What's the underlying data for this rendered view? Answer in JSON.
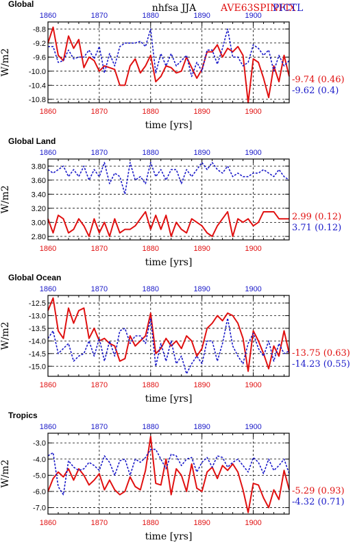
{
  "header": {
    "title": "nhfsa JJA",
    "legend_red": "AVE63SPINFIX",
    "legend_blue": "PICTL"
  },
  "colors": {
    "red": "#e01010",
    "blue": "#1818c8",
    "grid": "#000000"
  },
  "chart_data": [
    {
      "type": "line",
      "title": "Global",
      "xlabel": "time [yrs]",
      "ylabel": "W/m2",
      "xlim": [
        1860,
        1907
      ],
      "ylim": [
        -10.9,
        -8.6
      ],
      "yticks": [
        -10.8,
        -10.4,
        -10.0,
        -9.6,
        -9.2,
        -8.8
      ],
      "ytick_labels": [
        "-10.8",
        "-10.4",
        "-10.0",
        "-9.6",
        "-9.2",
        "-8.8"
      ],
      "xticks": [
        1860,
        1870,
        1880,
        1890,
        1900
      ],
      "xtick_labels": [
        "1860",
        "1870",
        "1880",
        "1890",
        "1900"
      ],
      "grid": true,
      "series": [
        {
          "name": "AVE63SPINFIX",
          "color": "#e01010",
          "x_start": 1860,
          "values": [
            -9.2,
            -8.75,
            -9.55,
            -9.7,
            -9.0,
            -9.35,
            -9.1,
            -9.9,
            -9.6,
            -9.7,
            -10.0,
            -9.85,
            -9.9,
            -9.95,
            -10.4,
            -10.4,
            -9.85,
            -9.65,
            -10.05,
            -9.85,
            -9.55,
            -10.3,
            -10.15,
            -9.85,
            -9.9,
            -10.05,
            -10.0,
            -9.6,
            -9.9,
            -10.2,
            -9.95,
            -9.45,
            -9.45,
            -9.25,
            -9.6,
            -9.35,
            -9.45,
            -9.3,
            -9.55,
            -10.9,
            -9.65,
            -9.75,
            -10.2,
            -10.75,
            -9.85,
            -10.3,
            -9.55,
            -10.15
          ]
        },
        {
          "name": "PICTL",
          "color": "#1818c8",
          "x_start": 1860,
          "values": [
            -9.3,
            -9.3,
            -9.75,
            -9.7,
            -9.4,
            -9.65,
            -9.6,
            -9.6,
            -9.4,
            -9.65,
            -9.3,
            -10.05,
            -9.5,
            -9.85,
            -9.3,
            -9.2,
            -9.2,
            -9.2,
            -9.15,
            -9.3,
            -8.8,
            -10.05,
            -9.5,
            -9.85,
            -9.5,
            -9.85,
            -9.7,
            -9.55,
            -10.15,
            -9.75,
            -10.0,
            -9.4,
            -9.4,
            -9.8,
            -9.35,
            -8.8,
            -9.6,
            -9.6,
            -9.85,
            -9.75,
            -9.25,
            -9.35,
            -9.55,
            -9.4,
            -10.0,
            -9.55,
            -9.85,
            -9.7
          ]
        }
      ],
      "stats": [
        {
          "text": "-9.74 (0.46)",
          "color": "#e01010"
        },
        {
          "text": "-9.62 (0.4)",
          "color": "#1818c8"
        }
      ]
    },
    {
      "type": "line",
      "title": "Global Land",
      "xlabel": "time [yrs]",
      "ylabel": "W/m2",
      "xlim": [
        1860,
        1907
      ],
      "ylim": [
        2.75,
        3.9
      ],
      "yticks": [
        2.8,
        3.0,
        3.2,
        3.4,
        3.6,
        3.8
      ],
      "ytick_labels": [
        "2.80",
        "3.00",
        "3.20",
        "3.40",
        "3.60",
        "3.80"
      ],
      "xticks": [
        1860,
        1870,
        1880,
        1890,
        1900
      ],
      "xtick_labels": [
        "1860",
        "1870",
        "1880",
        "1890",
        "1900"
      ],
      "grid": true,
      "series": [
        {
          "name": "AVE63SPINFIX",
          "color": "#e01010",
          "x_start": 1860,
          "values": [
            3.05,
            2.85,
            3.1,
            3.05,
            2.85,
            2.9,
            3.05,
            2.95,
            2.8,
            3.05,
            2.85,
            3.0,
            2.8,
            3.05,
            2.85,
            2.9,
            2.9,
            2.95,
            3.05,
            3.15,
            2.9,
            3.1,
            2.9,
            3.1,
            2.8,
            3.0,
            2.9,
            2.85,
            3.05,
            3.0,
            2.95,
            2.85,
            2.8,
            2.95,
            3.05,
            3.15,
            2.8,
            3.05,
            3.0,
            3.05,
            2.95,
            3.0,
            3.15,
            3.15,
            3.15,
            3.05,
            3.05,
            3.05
          ]
        },
        {
          "name": "PICTL",
          "color": "#1818c8",
          "x_start": 1860,
          "values": [
            3.75,
            3.7,
            3.75,
            3.8,
            3.65,
            3.75,
            3.65,
            3.8,
            3.6,
            3.75,
            3.65,
            3.85,
            3.55,
            3.7,
            3.65,
            3.4,
            3.85,
            3.6,
            3.65,
            3.55,
            3.85,
            3.65,
            3.75,
            3.6,
            3.75,
            3.75,
            3.55,
            3.75,
            3.65,
            3.75,
            3.85,
            3.75,
            3.85,
            3.75,
            3.7,
            3.8,
            3.65,
            3.7,
            3.65,
            3.65,
            3.7,
            3.7,
            3.75,
            3.7,
            3.65,
            3.75,
            3.65,
            3.6
          ]
        }
      ],
      "stats": [
        {
          "text": "2.99 (0.12)",
          "color": "#e01010"
        },
        {
          "text": "3.71 (0.12)",
          "color": "#1818c8"
        }
      ]
    },
    {
      "type": "line",
      "title": "Global Ocean",
      "xlabel": "time [yrs]",
      "ylabel": "W/m2",
      "xlim": [
        1860,
        1907
      ],
      "ylim": [
        -15.4,
        -12.2
      ],
      "yticks": [
        -15.0,
        -14.5,
        -14.0,
        -13.5,
        -13.0,
        -12.5
      ],
      "ytick_labels": [
        "-15.0",
        "-14.5",
        "-14.0",
        "-13.5",
        "-13.0",
        "-12.5"
      ],
      "xticks": [
        1860,
        1870,
        1880,
        1890,
        1900
      ],
      "xtick_labels": [
        "1860",
        "1870",
        "1880",
        "1890",
        "1900"
      ],
      "grid": true,
      "series": [
        {
          "name": "AVE63SPINFIX",
          "color": "#e01010",
          "x_start": 1860,
          "values": [
            -12.8,
            -12.3,
            -13.6,
            -13.9,
            -12.7,
            -13.3,
            -12.8,
            -12.7,
            -13.9,
            -13.5,
            -14.0,
            -13.9,
            -14.1,
            -14.2,
            -14.8,
            -14.7,
            -13.8,
            -14.2,
            -14.0,
            -13.8,
            -12.9,
            -14.5,
            -14.3,
            -13.9,
            -14.2,
            -14.0,
            -14.3,
            -13.8,
            -14.0,
            -14.6,
            -14.3,
            -13.5,
            -13.3,
            -13.0,
            -13.2,
            -12.9,
            -13.0,
            -13.3,
            -13.9,
            -15.2,
            -13.6,
            -14.0,
            -14.5,
            -15.1,
            -14.2,
            -14.6,
            -13.6,
            -14.5
          ]
        },
        {
          "name": "PICTL",
          "color": "#1818c8",
          "x_start": 1860,
          "values": [
            -13.9,
            -13.6,
            -14.5,
            -14.3,
            -14.1,
            -14.8,
            -14.6,
            -14.5,
            -14.0,
            -14.6,
            -13.9,
            -14.8,
            -14.0,
            -14.6,
            -13.6,
            -13.5,
            -14.1,
            -13.8,
            -13.8,
            -14.1,
            -13.1,
            -15.0,
            -14.1,
            -14.8,
            -14.0,
            -14.9,
            -14.6,
            -15.3,
            -14.9,
            -14.6,
            -14.9,
            -14.0,
            -14.0,
            -14.8,
            -14.1,
            -13.1,
            -14.2,
            -14.6,
            -14.9,
            -14.1,
            -13.7,
            -14.3,
            -14.6,
            -14.0,
            -14.8,
            -14.1,
            -14.5,
            -14.4
          ]
        }
      ],
      "stats": [
        {
          "text": "-13.75 (0.63)",
          "color": "#e01010"
        },
        {
          "text": "-14.23 (0.55)",
          "color": "#1818c8"
        }
      ]
    },
    {
      "type": "line",
      "title": "Tropics",
      "xlabel": "time [yrs]",
      "ylabel": "W/m2",
      "xlim": [
        1860,
        1907
      ],
      "ylim": [
        -7.4,
        -2.4
      ],
      "yticks": [
        -7.0,
        -6.0,
        -5.0,
        -4.0,
        -3.0
      ],
      "ytick_labels": [
        "-7.0",
        "-6.0",
        "-5.0",
        "-4.0",
        "-3.0"
      ],
      "xticks": [
        1860,
        1870,
        1880,
        1890,
        1900
      ],
      "xtick_labels": [
        "1860",
        "1870",
        "1880",
        "1890",
        "1900"
      ],
      "grid": true,
      "series": [
        {
          "name": "AVE63SPINFIX",
          "color": "#e01010",
          "x_start": 1860,
          "values": [
            -6.0,
            -5.2,
            -4.8,
            -5.1,
            -4.6,
            -5.3,
            -4.6,
            -5.0,
            -5.6,
            -5.3,
            -4.9,
            -5.9,
            -5.3,
            -5.9,
            -6.2,
            -6.0,
            -5.1,
            -5.7,
            -5.9,
            -4.7,
            -2.6,
            -5.5,
            -5.6,
            -4.0,
            -6.2,
            -4.6,
            -5.0,
            -6.0,
            -4.3,
            -5.8,
            -6.0,
            -4.8,
            -4.5,
            -5.2,
            -4.4,
            -4.7,
            -4.3,
            -4.8,
            -5.9,
            -7.3,
            -5.5,
            -5.6,
            -6.4,
            -7.0,
            -5.9,
            -6.5,
            -4.7,
            -5.9
          ]
        },
        {
          "name": "PICTL",
          "color": "#1818c8",
          "x_start": 1860,
          "values": [
            -3.8,
            -3.6,
            -5.7,
            -6.2,
            -4.1,
            -4.5,
            -4.7,
            -4.6,
            -4.2,
            -4.4,
            -4.7,
            -3.8,
            -4.2,
            -5.0,
            -4.1,
            -4.0,
            -5.0,
            -4.0,
            -4.2,
            -3.9,
            -3.4,
            -3.4,
            -4.0,
            -4.6,
            -3.7,
            -3.8,
            -4.4,
            -4.0,
            -3.9,
            -4.8,
            -4.2,
            -3.9,
            -4.5,
            -3.8,
            -3.9,
            -4.5,
            -4.2,
            -4.0,
            -4.4,
            -4.8,
            -3.9,
            -4.2,
            -4.9,
            -4.0,
            -4.7,
            -4.4,
            -4.0,
            -4.9
          ]
        }
      ],
      "stats": [
        {
          "text": "-5.29 (0.93)",
          "color": "#e01010"
        },
        {
          "text": "-4.32 (0.71)",
          "color": "#1818c8"
        }
      ]
    }
  ]
}
